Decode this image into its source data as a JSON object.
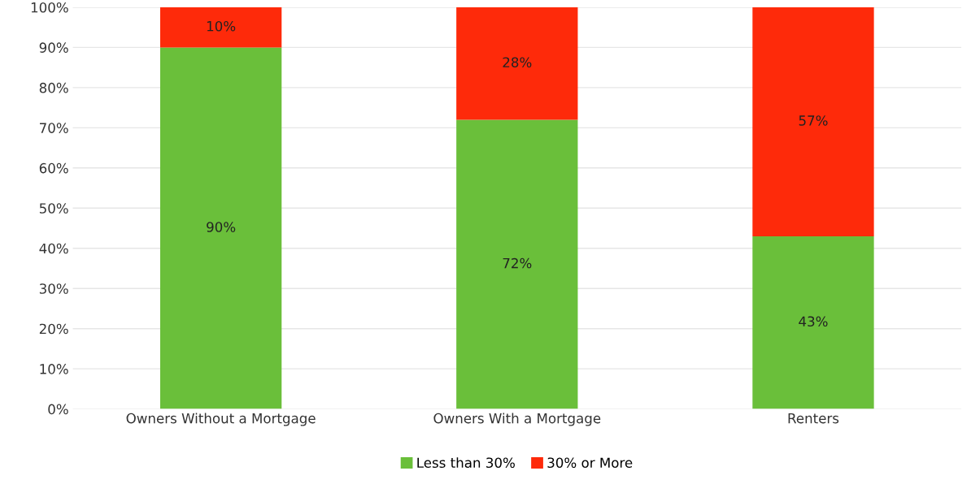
{
  "chart_data": {
    "type": "bar",
    "stacked": true,
    "categories": [
      "Owners Without a Mortgage",
      "Owners With a Mortgage",
      "Renters"
    ],
    "series": [
      {
        "name": "Less than 30%",
        "color": "#6abf3a",
        "values": [
          90,
          72,
          43
        ],
        "value_labels": [
          "90%",
          "72%",
          "43%"
        ]
      },
      {
        "name": "30% or More",
        "color": "#fe2a0a",
        "values": [
          10,
          28,
          57
        ],
        "value_labels": [
          "10%",
          "28%",
          "57%"
        ]
      }
    ],
    "ylim": [
      0,
      100
    ],
    "yticks": [
      {
        "value": 0,
        "label": "0%"
      },
      {
        "value": 10,
        "label": "10%"
      },
      {
        "value": 20,
        "label": "20%"
      },
      {
        "value": 30,
        "label": "30%"
      },
      {
        "value": 40,
        "label": "40%"
      },
      {
        "value": 50,
        "label": "50%"
      },
      {
        "value": 60,
        "label": "60%"
      },
      {
        "value": 70,
        "label": "70%"
      },
      {
        "value": 80,
        "label": "80%"
      },
      {
        "value": 90,
        "label": "90%"
      },
      {
        "value": 100,
        "label": "100%"
      }
    ],
    "grid": "y",
    "legend": "bottom"
  }
}
